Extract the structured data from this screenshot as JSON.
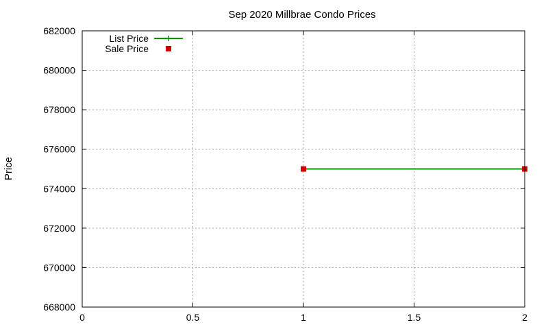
{
  "chart_data": {
    "type": "line",
    "title": "Sep 2020 Millbrae Condo Prices",
    "xlabel": "",
    "ylabel": "Price",
    "xlim": [
      0,
      2
    ],
    "ylim": [
      668000,
      682000
    ],
    "x_ticks": [
      0,
      0.5,
      1,
      1.5,
      2
    ],
    "y_ticks": [
      668000,
      670000,
      672000,
      674000,
      676000,
      678000,
      680000,
      682000
    ],
    "grid": true,
    "legend_position": "top-left",
    "series": [
      {
        "name": "List Price",
        "style": "line",
        "color": "#009900",
        "x": [
          1,
          2
        ],
        "y": [
          675000,
          675000
        ]
      },
      {
        "name": "Sale Price",
        "style": "points",
        "marker": "square",
        "color": "#cc0000",
        "x": [
          1,
          2
        ],
        "y": [
          675000,
          675000
        ]
      }
    ]
  }
}
